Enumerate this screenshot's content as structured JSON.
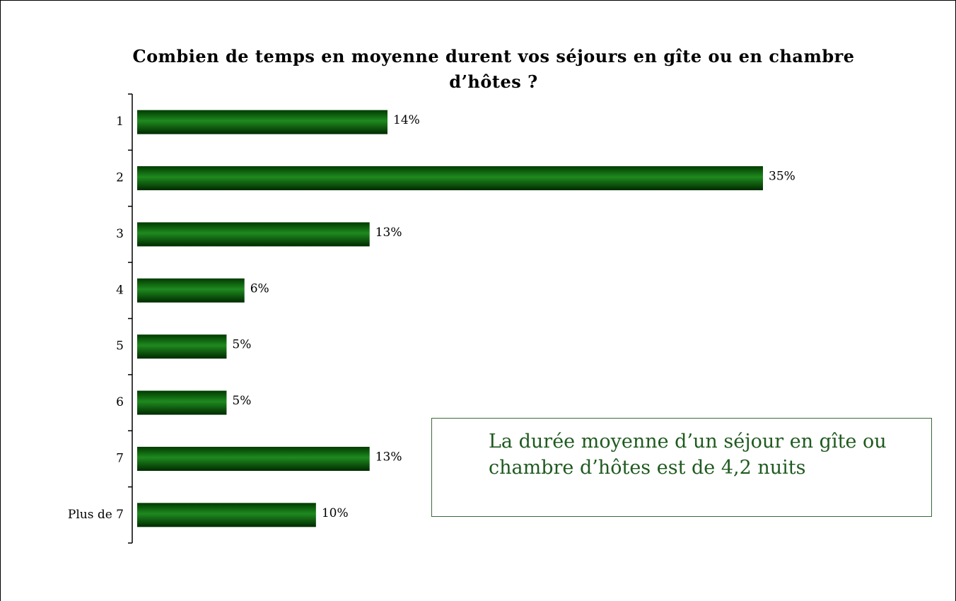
{
  "chart_data": {
    "type": "bar",
    "orientation": "horizontal",
    "title": "Combien de temps en moyenne durent vos séjours en gîte ou en chambre d’hôtes ?",
    "categories": [
      "1",
      "2",
      "3",
      "4",
      "5",
      "6",
      "7",
      "Plus de 7"
    ],
    "values": [
      14,
      35,
      13,
      6,
      5,
      5,
      13,
      10
    ],
    "value_labels": [
      "14%",
      "35%",
      "13%",
      "6%",
      "5%",
      "5%",
      "13%",
      "10%"
    ],
    "color": "#0b6b0b",
    "annotation": "La durée moyenne d’un séjour en gîte ou chambre d’hôtes est de 4,2 nuits"
  }
}
